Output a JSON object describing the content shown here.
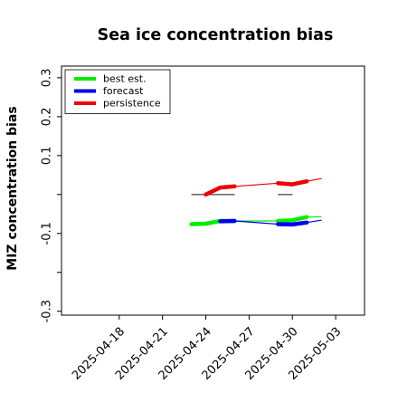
{
  "chart_data": {
    "type": "line",
    "title": "Sea ice concentration bias",
    "xlabel": "",
    "ylabel": "MIZ concentration bias",
    "xlim": [
      "2025-04-14",
      "2025-05-05"
    ],
    "ylim": [
      -0.31,
      0.33
    ],
    "x_ticks": [
      "2025-04-18",
      "2025-04-21",
      "2025-04-24",
      "2025-04-27",
      "2025-04-30",
      "2025-05-03"
    ],
    "highlight_tick": "2025-04-24",
    "highlight_color": "#228B22",
    "y_ticks": [
      -0.3,
      -0.2,
      -0.1,
      0.0,
      0.1,
      0.2,
      0.3
    ],
    "y_tick_labels": [
      "-0.3",
      "",
      "-0.1",
      "",
      "0.1",
      "0.2",
      "0.3"
    ],
    "legend": {
      "position": "top-left",
      "entries": [
        {
          "label": "best est.",
          "color": "#00ee00"
        },
        {
          "label": "forecast",
          "color": "#0000ee"
        },
        {
          "label": "persistence",
          "color": "#ee0000"
        }
      ]
    },
    "reference_lines": [
      {
        "color": "#555555",
        "y": 0.0,
        "segments": [
          [
            "2025-04-23",
            "2025-04-26"
          ],
          [
            "2025-04-29",
            "2025-04-30"
          ]
        ]
      }
    ],
    "series": [
      {
        "name": "best est.",
        "color": "#00ee00",
        "style": "thick",
        "segments": [
          {
            "x": [
              "2025-04-23",
              "2025-04-24",
              "2025-04-25",
              "2025-04-26"
            ],
            "y": [
              -0.076,
              -0.075,
              -0.068,
              -0.068
            ]
          },
          {
            "x": [
              "2025-04-29",
              "2025-04-30",
              "2025-05-01"
            ],
            "y": [
              -0.068,
              -0.066,
              -0.058
            ]
          }
        ]
      },
      {
        "name": "best est.",
        "color": "#00ee00",
        "style": "thin",
        "segments": [
          {
            "x": [
              "2025-04-26",
              "2025-04-29"
            ],
            "y": [
              -0.068,
              -0.068
            ]
          },
          {
            "x": [
              "2025-05-01",
              "2025-05-02"
            ],
            "y": [
              -0.058,
              -0.057
            ]
          }
        ]
      },
      {
        "name": "forecast",
        "color": "#0000ee",
        "style": "thick",
        "segments": [
          {
            "x": [
              "2025-04-25",
              "2025-04-26"
            ],
            "y": [
              -0.069,
              -0.068
            ]
          },
          {
            "x": [
              "2025-04-29",
              "2025-04-30",
              "2025-05-01"
            ],
            "y": [
              -0.076,
              -0.077,
              -0.072
            ]
          }
        ]
      },
      {
        "name": "forecast",
        "color": "#0000ee",
        "style": "thin",
        "segments": [
          {
            "x": [
              "2025-04-26",
              "2025-04-29"
            ],
            "y": [
              -0.068,
              -0.076
            ]
          },
          {
            "x": [
              "2025-05-01",
              "2025-05-02"
            ],
            "y": [
              -0.072,
              -0.066
            ]
          }
        ]
      },
      {
        "name": "persistence",
        "color": "#ee0000",
        "style": "thick",
        "segments": [
          {
            "x": [
              "2025-04-24",
              "2025-04-25",
              "2025-04-26"
            ],
            "y": [
              0.0,
              0.018,
              0.021
            ]
          },
          {
            "x": [
              "2025-04-29",
              "2025-04-30",
              "2025-05-01"
            ],
            "y": [
              0.029,
              0.026,
              0.034
            ]
          }
        ]
      },
      {
        "name": "persistence",
        "color": "#ee0000",
        "style": "thin",
        "segments": [
          {
            "x": [
              "2025-04-26",
              "2025-04-29"
            ],
            "y": [
              0.021,
              0.029
            ]
          },
          {
            "x": [
              "2025-05-01",
              "2025-05-02"
            ],
            "y": [
              0.034,
              0.041
            ]
          }
        ]
      }
    ]
  }
}
